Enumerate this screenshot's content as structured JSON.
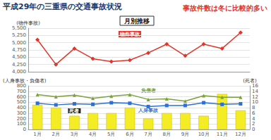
{
  "chart_data": [
    {
      "type": "line",
      "title": "平成29年の三重県の交通事故状況",
      "annotations": [
        "事故件数は冬に比較的多い",
        "月別推移"
      ],
      "categories": [
        "1月",
        "2月",
        "3月",
        "4月",
        "5月",
        "6月",
        "7月",
        "8月",
        "9月",
        "10月",
        "11月",
        "12月"
      ],
      "ylabel": "(物件事故)",
      "series": [
        {
          "name": "物件事故",
          "color": "#e3342a",
          "marker": "diamond",
          "values": [
            5100,
            4250,
            4800,
            4450,
            4350,
            4400,
            4650,
            4950,
            4550,
            4950,
            4800,
            5350
          ]
        }
      ],
      "ylim": [
        4000,
        5500
      ],
      "yticks": [
        {
          "value": 4000,
          "label": "4,000"
        },
        {
          "value": 4250,
          "label": "4,250"
        },
        {
          "value": 4500,
          "label": "4,500"
        },
        {
          "value": 4750,
          "label": "4,750"
        },
        {
          "value": 5000,
          "label": "5,000"
        },
        {
          "value": 5250,
          "label": "5,250"
        },
        {
          "value": 5500,
          "label": "5,500"
        }
      ],
      "tick_labels": "y",
      "grid": true
    },
    {
      "type": "bar",
      "categories": [
        "1月",
        "2月",
        "3月",
        "4月",
        "5月",
        "6月",
        "7月",
        "8月",
        "9月",
        "10月",
        "11月",
        "12月"
      ],
      "ylabel": "(人身事故・負傷者)",
      "y2label": "(死者)",
      "series": [
        {
          "name": "死者",
          "type": "bar",
          "color": "#f4ec24",
          "axis": "y2",
          "values": [
            9,
            8,
            5,
            6,
            6,
            8,
            4,
            6,
            6,
            5,
            13,
            7
          ]
        },
        {
          "name": "人身事故",
          "type": "line",
          "color": "#2e6fd6",
          "marker": "square",
          "values": [
            480,
            450,
            470,
            460,
            490,
            480,
            420,
            440,
            440,
            490,
            460,
            470
          ]
        },
        {
          "name": "負傷者",
          "type": "line",
          "color": "#7ba33b",
          "marker": "triangle",
          "values": [
            640,
            600,
            630,
            570,
            610,
            640,
            550,
            560,
            520,
            620,
            590,
            590
          ]
        }
      ],
      "ylim": [
        0,
        800
      ],
      "yticks": [
        0,
        100,
        200,
        300,
        400,
        500,
        600,
        700,
        800
      ],
      "y2lim": [
        0,
        16
      ],
      "y2ticks": [
        0,
        2,
        4,
        6,
        8,
        10,
        12,
        14,
        16
      ],
      "grid": true
    }
  ]
}
